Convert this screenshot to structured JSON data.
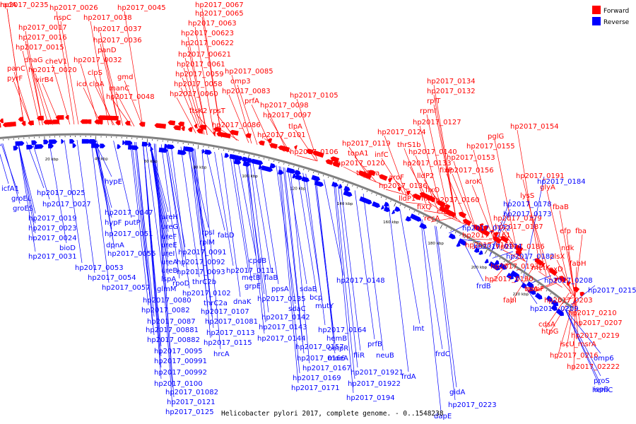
{
  "caption": "Helicobacter pylori 2017, complete genome. - 0..1548238",
  "legend": [
    {
      "label": "Forward",
      "color": "#ff0000"
    },
    {
      "label": "Reverse",
      "color": "#0000ff"
    }
  ],
  "colors": {
    "forward": "#ff0000",
    "reverse": "#0000ff",
    "backbone": "#808080"
  },
  "scale_labels": [
    "20 kbp",
    "40 kbp",
    "60 kbp",
    "80 kbp",
    "100 kbp",
    "120 kbp",
    "140 kbp",
    "160 kbp",
    "180 kbp",
    "200 kbp",
    "220 kbp"
  ],
  "forward_labels": [
    "hp2017_0026",
    "hp2017_0045",
    "hp2017_0067",
    "nspC",
    "hp2017_0038",
    "hp2017_0065",
    "hp2017_0017",
    "hp2017_0037",
    "hp2017_0063",
    "hp2017_0016",
    "hp2017_0036",
    "hp2017_00623",
    "hp2017_0015",
    "panD",
    "hp2017_00622",
    "panC",
    "dnaG",
    "cheV1",
    "hp2017_0032",
    "hp2017_00621",
    "hp2017_0020",
    "clpS",
    "hp2017_0061",
    "pyrF",
    "virB4",
    "gmd",
    "hp2017_0085",
    "icd",
    "clpA",
    "hp2017_0059",
    "manC",
    "hp2017_0058",
    "omp3",
    "hp2017_0048",
    "hp2017_0060",
    "hp2017_0083",
    "ftsK2",
    "rpsT",
    "prfA",
    "hp2017_0105",
    "hp2017_0098",
    "hp2017_0097",
    "hp2017_0086",
    "tlpA",
    "hp2017_0101",
    "hp2017_0106",
    "hp2017_0134",
    "hp2017_0132",
    "rplT",
    "rpmI",
    "hp2017_0127",
    "hp2017_0124",
    "hp2017_0119",
    "thrS1b",
    "topA1",
    "infC",
    "hp2017_0120",
    "hp2017_0133",
    "thrS1a",
    "aroF",
    "hp2017_0136",
    "lldP1",
    "lldP2",
    "hp2017_0140",
    "hp2017_0155",
    "fixP",
    "fixO",
    "fixN",
    "fixQ",
    "eno",
    "recA",
    "aroK",
    "hp2017_0160",
    "hp2017_0156",
    "hp2017_0153",
    "hp2017_0154",
    "pglG",
    "hp2017_0161",
    "hp2017_0165",
    "hp2017_0179",
    "hp2017_0187",
    "hp2017_0186",
    "hp2017_0190",
    "hp2017_0193",
    "glyA",
    "fbaB",
    "lysS",
    "hp2017_0191",
    "fba",
    "efp",
    "ndk",
    "plsX",
    "metK",
    "lpxD",
    "tpiA",
    "rpmF",
    "fabI",
    "hp2017_0203",
    "fabH",
    "hp2017_0210",
    "hp2017_0207",
    "cdsA",
    "hp2017_0219",
    "htpG",
    "iscU_msrA",
    "hp2017_0216",
    "hp2017_02222",
    "radA",
    "hp2017_0235"
  ],
  "reverse_labels": [
    "icfA1",
    "groEL",
    "groES",
    "hp2017_0025",
    "hp2017_0019",
    "hp2017_0027",
    "hp2017_0023",
    "hp2017_0024",
    "bioD",
    "hp2017_0031",
    "hypE",
    "hp2017_0047",
    "hypF",
    "putP",
    "hp2017_0051",
    "dpnA",
    "hp2017_0055",
    "hp2017_0053",
    "hp2017_0054",
    "hp2017_0057",
    "ureH",
    "ureG",
    "ureF",
    "ureE",
    "ureI",
    "ureA",
    "ureB",
    "lspA",
    "glmM",
    "hp2017_0080",
    "hp2017_0082",
    "hp2017_0087",
    "hp2017_00881",
    "hp2017_00882",
    "hp2017_0095",
    "hp2017_00991",
    "hp2017_00992",
    "hp2017_0100",
    "hp2017_01082",
    "hp2017_0121",
    "hp2017_0125",
    "rpsI",
    "rplM",
    "fabD",
    "hp2017_0091",
    "hp2017_0092",
    "hp2017_0093",
    "rpoD",
    "thrC2b",
    "thrC2a",
    "dnaK",
    "hp2017_0102",
    "hp2017_0107",
    "hp2017_01081",
    "hp2017_0113",
    "hp2017_0115",
    "hrcA",
    "cpdB",
    "metB",
    "flaB",
    "hp2017_0111",
    "grpE",
    "hp2017_0135",
    "ppsA",
    "sdaB",
    "bcp",
    "sdaC",
    "mutY",
    "hp2017_0142",
    "hp2017_0143",
    "hp2017_0144",
    "hp2017_0148",
    "hp2017_0164",
    "hp2017_0157",
    "hemB",
    "ompR",
    "prfB",
    "moeA",
    "hp2017_0166",
    "hp2017_0167",
    "fliR",
    "neuB",
    "hp2017_0169",
    "hp2017_0171",
    "hp2017_01921",
    "hp2017_01922",
    "frdA",
    "hp2017_0194",
    "lmt",
    "frdC",
    "gidA",
    "hp2017_0223",
    "dapE",
    "hp2017_0172",
    "hp2017_0173",
    "hp2017_0178",
    "hp2017_0174",
    "hp2017_0182",
    "frdB",
    "hp2017_0184",
    "hp2017_0208",
    "hp2017_0215",
    "hp2017_0209",
    "omp6",
    "hemC",
    "ispB",
    "proS"
  ]
}
